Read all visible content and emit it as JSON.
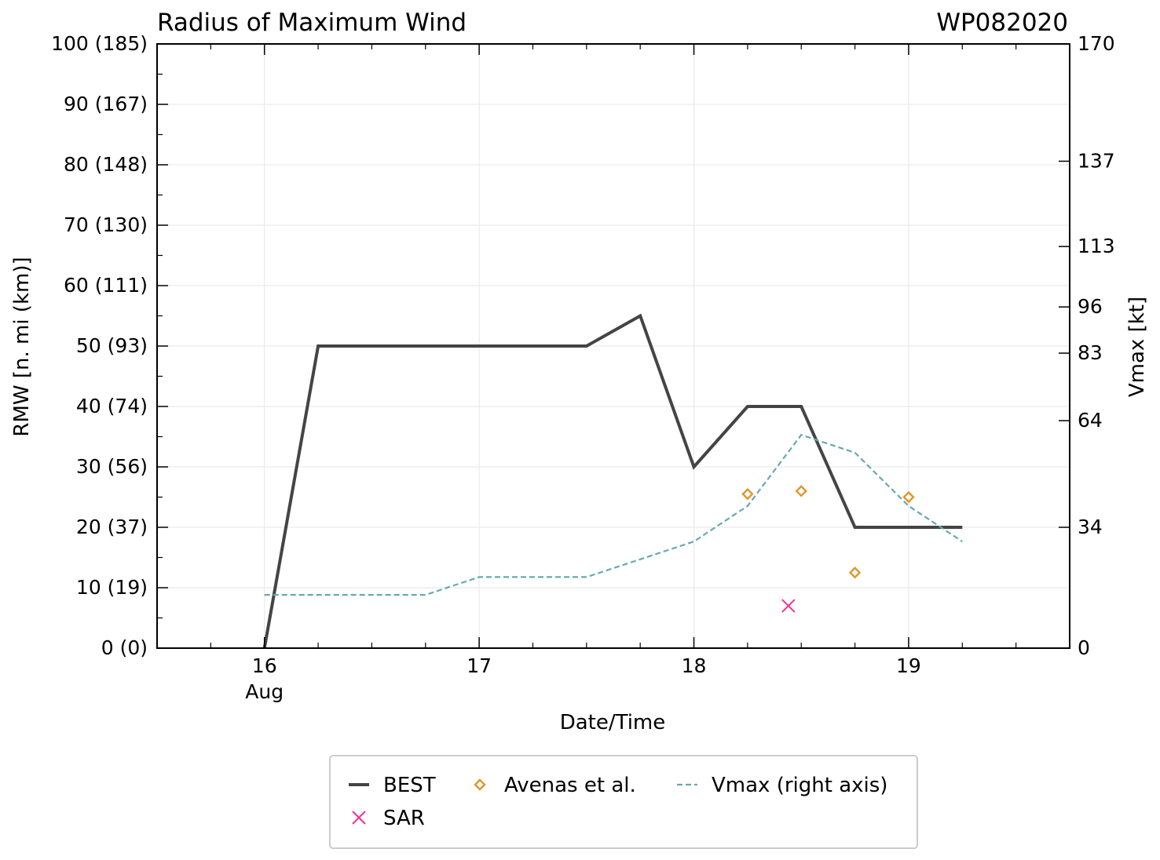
{
  "chart_data": {
    "type": "line",
    "title": "Radius of Maximum Wind",
    "storm_id": "WP082020",
    "xlabel": "Date/Time",
    "ylabel": "RMW [n. mi (km)]",
    "y2label": "Vmax [kt]",
    "xlim": [
      15.5,
      19.75
    ],
    "ylim": [
      0,
      100
    ],
    "x_ticks": [
      {
        "value": 16,
        "label": "16",
        "sublabel": "Aug"
      },
      {
        "value": 17,
        "label": "17",
        "sublabel": ""
      },
      {
        "value": 18,
        "label": "18",
        "sublabel": ""
      },
      {
        "value": 19,
        "label": "19",
        "sublabel": ""
      }
    ],
    "x_minor_ticks": [
      15.75,
      16.25,
      16.5,
      16.75,
      17.25,
      17.5,
      17.75,
      18.25,
      18.5,
      18.75,
      19.25,
      19.5
    ],
    "y_ticks": [
      {
        "value": 0,
        "label": "0 (0)"
      },
      {
        "value": 10,
        "label": "10 (19)"
      },
      {
        "value": 20,
        "label": "20 (37)"
      },
      {
        "value": 30,
        "label": "30 (56)"
      },
      {
        "value": 40,
        "label": "40 (74)"
      },
      {
        "value": 50,
        "label": "50 (93)"
      },
      {
        "value": 60,
        "label": "60 (111)"
      },
      {
        "value": 70,
        "label": "70 (130)"
      },
      {
        "value": 80,
        "label": "80 (148)"
      },
      {
        "value": 90,
        "label": "90 (167)"
      },
      {
        "value": 100,
        "label": "100 (185)"
      }
    ],
    "y2lim": [
      0,
      170
    ],
    "y2_ticks": [
      {
        "value": 0,
        "label": "0"
      },
      {
        "value": 34,
        "label": "34"
      },
      {
        "value": 64,
        "label": "64"
      },
      {
        "value": 83,
        "label": "83"
      },
      {
        "value": 96,
        "label": "96"
      },
      {
        "value": 113,
        "label": "113"
      },
      {
        "value": 137,
        "label": "137"
      },
      {
        "value": 170,
        "label": "170"
      }
    ],
    "grid": true,
    "legend_position": "bottom-center",
    "series": [
      {
        "name": "BEST",
        "kind": "line",
        "color": "#444444",
        "axis": "left",
        "x": [
          16.0,
          16.25,
          16.5,
          16.75,
          17.0,
          17.25,
          17.5,
          17.75,
          18.0,
          18.25,
          18.5,
          18.75,
          19.0,
          19.25
        ],
        "y": [
          0,
          50,
          50,
          50,
          50,
          50,
          50,
          55,
          30,
          40,
          40,
          20,
          20,
          20
        ]
      },
      {
        "name": "SAR",
        "kind": "x-marker",
        "color": "#e8359a",
        "axis": "left",
        "x": [
          18.44
        ],
        "y": [
          7
        ]
      },
      {
        "name": "Avenas et al.",
        "kind": "diamond-marker",
        "color": "#e0962a",
        "axis": "left",
        "x": [
          18.25,
          18.5,
          18.75,
          19.0
        ],
        "y": [
          25.5,
          26,
          12.5,
          25
        ]
      },
      {
        "name": "Vmax (right axis)",
        "kind": "dashed-line",
        "color": "#6aa8b0",
        "axis": "right",
        "x": [
          16.0,
          16.25,
          16.5,
          16.75,
          17.0,
          17.25,
          17.5,
          17.75,
          18.0,
          18.25,
          18.5,
          18.75,
          19.0,
          19.25
        ],
        "y": [
          15,
          15,
          15,
          15,
          20,
          20,
          20,
          25,
          30,
          40,
          60,
          55,
          40,
          30
        ]
      }
    ],
    "legend": [
      {
        "name": "BEST",
        "kind": "line",
        "color": "#444444"
      },
      {
        "name": "Avenas et al.",
        "kind": "diamond-marker",
        "color": "#e0962a"
      },
      {
        "name": "Vmax (right axis)",
        "kind": "dashed-line",
        "color": "#6aa8b0"
      },
      {
        "name": "SAR",
        "kind": "x-marker",
        "color": "#e8359a"
      }
    ]
  }
}
